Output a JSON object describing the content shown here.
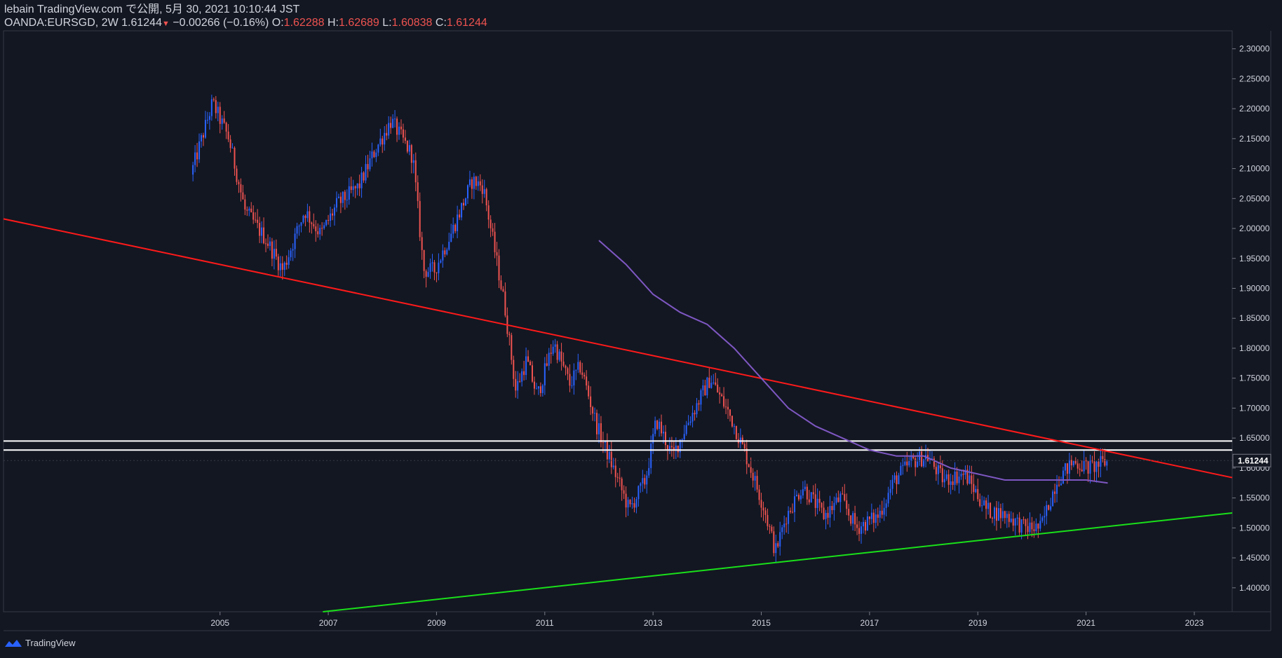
{
  "header": {
    "published": "lebain TradingView.com で公開, 5月 30, 2021 10:10:44 JST",
    "symbol": "OANDA:EURSGD, 2W",
    "last": "1.61244",
    "change": "−0.00266 (−0.16%)",
    "o_label": "O:",
    "o_value": "1.62288",
    "h_label": "H:",
    "h_value": "1.62689",
    "l_label": "L:",
    "l_value": "1.60838",
    "c_label": "C:",
    "c_value": "1.61244"
  },
  "footer": {
    "brand": "TradingView"
  },
  "colors": {
    "background": "#131722",
    "up": "#2962ff",
    "down": "#ef5350",
    "resistance": "#ff1a1a",
    "support": "#1ae01a",
    "ma": "#7e57c2",
    "horizontal": "#ffffff"
  },
  "chart_data": {
    "type": "candlestick",
    "x_tick_labels": [
      "2005",
      "2007",
      "2009",
      "2011",
      "2013",
      "2015",
      "2017",
      "2019",
      "2021",
      "2023"
    ],
    "y_tick_labels": [
      "2.30000",
      "2.25000",
      "2.20000",
      "2.15000",
      "2.10000",
      "2.05000",
      "2.00000",
      "1.95000",
      "1.90000",
      "1.85000",
      "1.80000",
      "1.75000",
      "1.70000",
      "1.65000",
      "1.60000",
      "1.55000",
      "1.50000",
      "1.45000",
      "1.40000"
    ],
    "ylim": [
      1.36,
      2.33
    ],
    "xlim": [
      2001.0,
      2023.7
    ],
    "last_price": "1.61244",
    "price_path": [
      [
        2004.5,
        2.09
      ],
      [
        2004.9,
        2.21
      ],
      [
        2005.2,
        2.15
      ],
      [
        2005.5,
        2.03
      ],
      [
        2005.9,
        1.98
      ],
      [
        2006.2,
        1.93
      ],
      [
        2006.6,
        2.03
      ],
      [
        2006.9,
        1.99
      ],
      [
        2007.2,
        2.04
      ],
      [
        2007.6,
        2.07
      ],
      [
        2007.9,
        2.13
      ],
      [
        2008.2,
        2.18
      ],
      [
        2008.6,
        2.12
      ],
      [
        2008.8,
        1.93
      ],
      [
        2009.0,
        1.93
      ],
      [
        2009.3,
        1.99
      ],
      [
        2009.7,
        2.08
      ],
      [
        2009.9,
        2.07
      ],
      [
        2010.3,
        1.87
      ],
      [
        2010.5,
        1.73
      ],
      [
        2010.7,
        1.78
      ],
      [
        2010.9,
        1.72
      ],
      [
        2011.2,
        1.81
      ],
      [
        2011.5,
        1.74
      ],
      [
        2011.7,
        1.77
      ],
      [
        2012.0,
        1.67
      ],
      [
        2012.3,
        1.6
      ],
      [
        2012.6,
        1.53
      ],
      [
        2012.9,
        1.58
      ],
      [
        2013.1,
        1.68
      ],
      [
        2013.4,
        1.62
      ],
      [
        2013.7,
        1.68
      ],
      [
        2014.1,
        1.75
      ],
      [
        2014.5,
        1.68
      ],
      [
        2014.8,
        1.61
      ],
      [
        2015.1,
        1.53
      ],
      [
        2015.3,
        1.46
      ],
      [
        2015.5,
        1.52
      ],
      [
        2015.8,
        1.57
      ],
      [
        2016.2,
        1.52
      ],
      [
        2016.5,
        1.55
      ],
      [
        2016.8,
        1.5
      ],
      [
        2017.2,
        1.52
      ],
      [
        2017.5,
        1.58
      ],
      [
        2017.8,
        1.61
      ],
      [
        2018.1,
        1.62
      ],
      [
        2018.4,
        1.58
      ],
      [
        2018.8,
        1.59
      ],
      [
        2019.2,
        1.53
      ],
      [
        2019.6,
        1.52
      ],
      [
        2019.9,
        1.5
      ],
      [
        2020.2,
        1.5
      ],
      [
        2020.5,
        1.58
      ],
      [
        2020.8,
        1.61
      ],
      [
        2021.1,
        1.6
      ],
      [
        2021.4,
        1.61
      ]
    ],
    "moving_average": [
      [
        2012.0,
        1.98
      ],
      [
        2012.5,
        1.94
      ],
      [
        2013.0,
        1.89
      ],
      [
        2013.5,
        1.86
      ],
      [
        2014.0,
        1.84
      ],
      [
        2014.5,
        1.8
      ],
      [
        2015.0,
        1.75
      ],
      [
        2015.5,
        1.7
      ],
      [
        2016.0,
        1.67
      ],
      [
        2016.5,
        1.65
      ],
      [
        2017.0,
        1.63
      ],
      [
        2017.5,
        1.62
      ],
      [
        2018.0,
        1.62
      ],
      [
        2018.5,
        1.6
      ],
      [
        2019.0,
        1.59
      ],
      [
        2019.5,
        1.58
      ],
      [
        2020.0,
        1.58
      ],
      [
        2020.5,
        1.58
      ],
      [
        2021.0,
        1.58
      ],
      [
        2021.4,
        1.575
      ]
    ],
    "resistance_line": [
      [
        2001.0,
        2.016
      ],
      [
        2023.7,
        1.584
      ]
    ],
    "support_line": [
      [
        2006.9,
        1.36
      ],
      [
        2023.7,
        1.525
      ]
    ],
    "horizontal_lines": [
      1.645,
      1.63
    ]
  }
}
